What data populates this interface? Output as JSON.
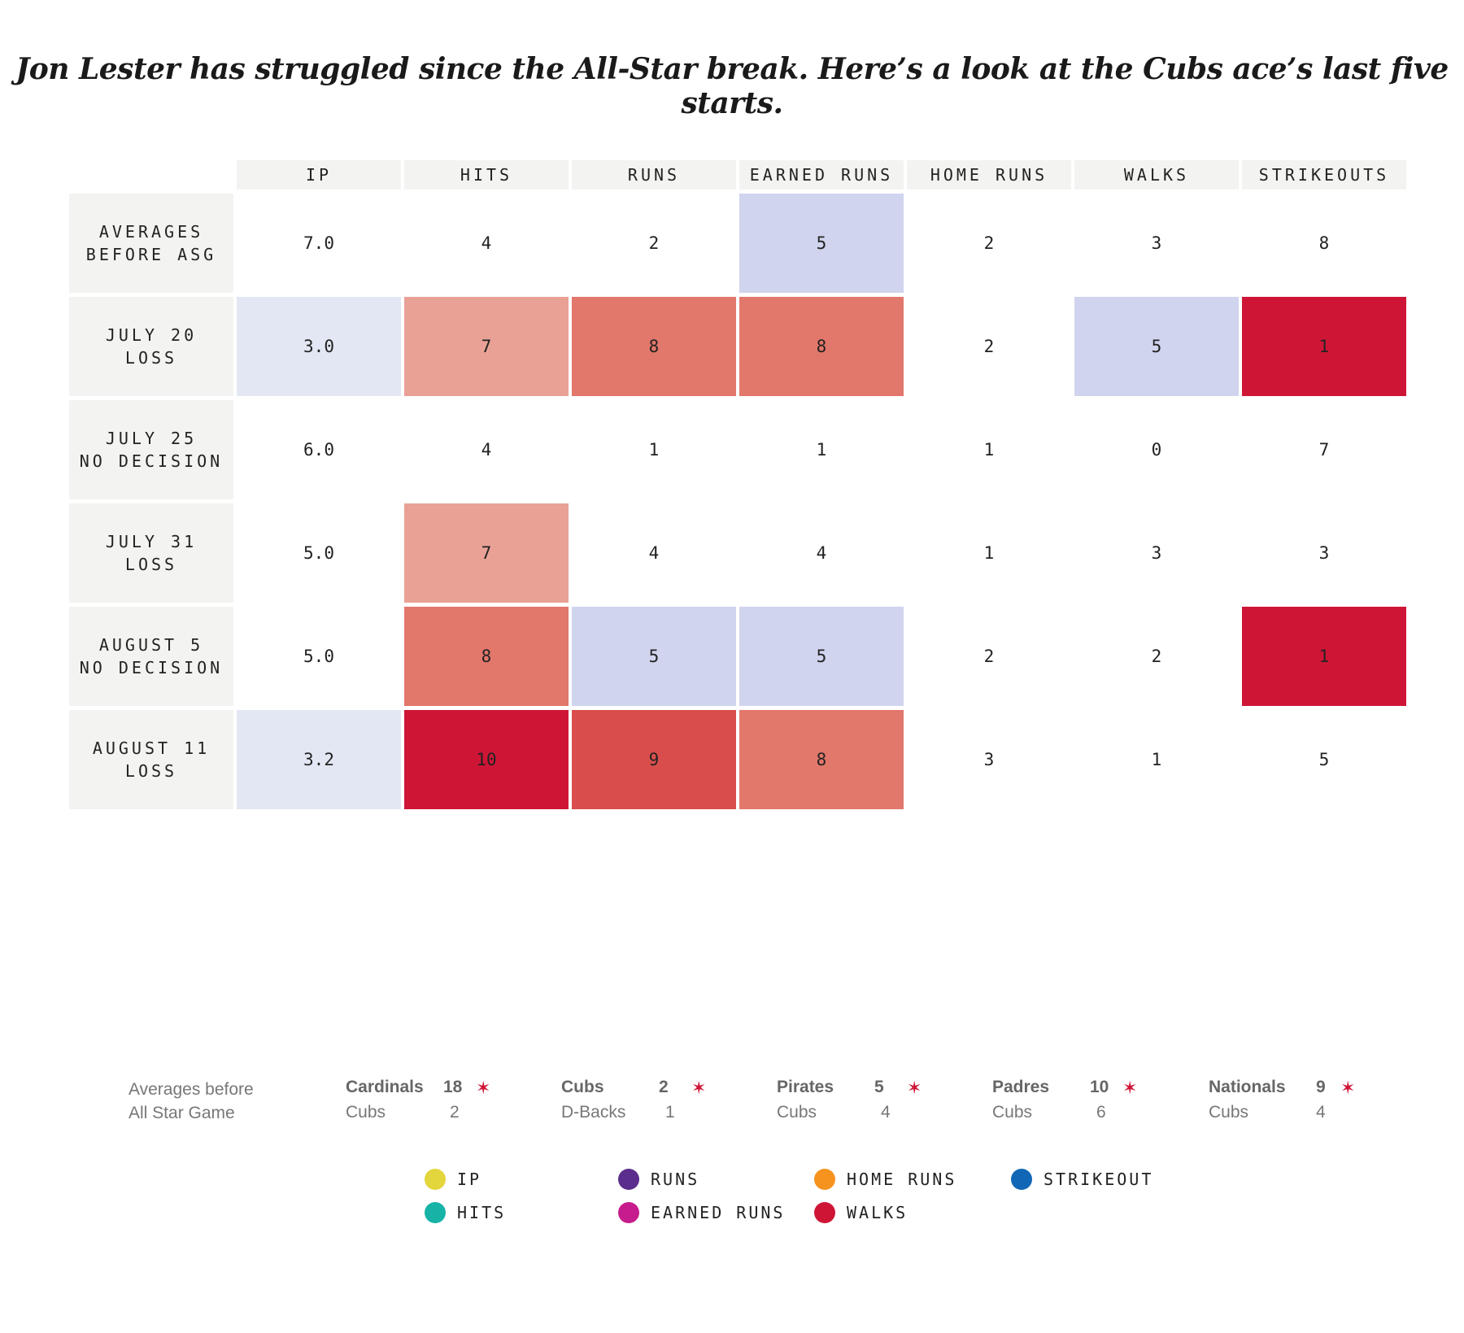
{
  "title": "Jon Lester has struggled since the All-Star break. Here’s a look at the Cubs ace’s last five starts.",
  "colors": {
    "header_bg": "#f3f3f1",
    "label_bg": "#f3f3f1",
    "lightblue": "#e2e7f3",
    "lavender": "#d0d4ee",
    "pink": "#e9a195",
    "salmon": "#e2776b",
    "redorange": "#d94e4c",
    "red": "#cf1536",
    "star": "#cf1536"
  },
  "chart_data": {
    "type": "table",
    "title": "Jon Lester has struggled since the All-Star break. Here’s a look at the Cubs ace’s last five starts.",
    "columns": [
      "IP",
      "HITS",
      "RUNS",
      "EARNED RUNS",
      "HOME RUNS",
      "WALKS",
      "STRIKEOUTS"
    ],
    "rows": [
      {
        "label": [
          "AVERAGES",
          "BEFORE ASG"
        ],
        "values": [
          "7.0",
          "4",
          "2",
          "5",
          "2",
          "3",
          "8"
        ],
        "shades": [
          "none",
          "none",
          "none",
          "lavender",
          "none",
          "none",
          "none"
        ]
      },
      {
        "label": [
          "JULY 20",
          "LOSS"
        ],
        "values": [
          "3.0",
          "7",
          "8",
          "8",
          "2",
          "5",
          "1"
        ],
        "shades": [
          "lightblue",
          "pink",
          "salmon",
          "salmon",
          "none",
          "lavender",
          "red"
        ]
      },
      {
        "label": [
          "JULY 25",
          "NO DECISION"
        ],
        "values": [
          "6.0",
          "4",
          "1",
          "1",
          "1",
          "0",
          "7"
        ],
        "shades": [
          "none",
          "none",
          "none",
          "none",
          "none",
          "none",
          "none"
        ]
      },
      {
        "label": [
          "JULY 31",
          "LOSS"
        ],
        "values": [
          "5.0",
          "7",
          "4",
          "4",
          "1",
          "3",
          "3"
        ],
        "shades": [
          "none",
          "pink",
          "none",
          "none",
          "none",
          "none",
          "none"
        ]
      },
      {
        "label": [
          "AUGUST 5",
          "NO DECISION"
        ],
        "values": [
          "5.0",
          "8",
          "5",
          "5",
          "2",
          "2",
          "1"
        ],
        "shades": [
          "none",
          "salmon",
          "lavender",
          "lavender",
          "none",
          "none",
          "red"
        ]
      },
      {
        "label": [
          "AUGUST 11",
          "LOSS"
        ],
        "values": [
          "3.2",
          "10",
          "9",
          "8",
          "3",
          "1",
          "5"
        ],
        "shades": [
          "lightblue",
          "red",
          "redorange",
          "salmon",
          "none",
          "none",
          "none"
        ]
      }
    ]
  },
  "results": {
    "avg_label": [
      "Averages before",
      "All Star Game"
    ],
    "games": [
      {
        "team1": "Cardinals",
        "score1": "18",
        "team2": "Cubs",
        "score2": "2",
        "star": "✶"
      },
      {
        "team1": "Cubs",
        "score1": "2",
        "team2": "D-Backs",
        "score2": "1",
        "star": "✶"
      },
      {
        "team1": "Pirates",
        "score1": "5",
        "team2": "Cubs",
        "score2": "4",
        "star": "✶"
      },
      {
        "team1": "Padres",
        "score1": "10",
        "team2": "Cubs",
        "score2": "6",
        "star": "✶"
      },
      {
        "team1": "Nationals",
        "score1": "9",
        "team2": "Cubs",
        "score2": "4",
        "star": "✶"
      }
    ]
  },
  "legend": [
    {
      "label": "IP",
      "color": "#e3d53c"
    },
    {
      "label": "HITS",
      "color": "#16b3a6"
    },
    {
      "label": "RUNS",
      "color": "#5b2d8c"
    },
    {
      "label": "EARNED RUNS",
      "color": "#c71c8d"
    },
    {
      "label": "HOME RUNS",
      "color": "#f6931e"
    },
    {
      "label": "WALKS",
      "color": "#cf1536"
    },
    {
      "label": "STRIKEOUT",
      "color": "#1067b6"
    }
  ]
}
